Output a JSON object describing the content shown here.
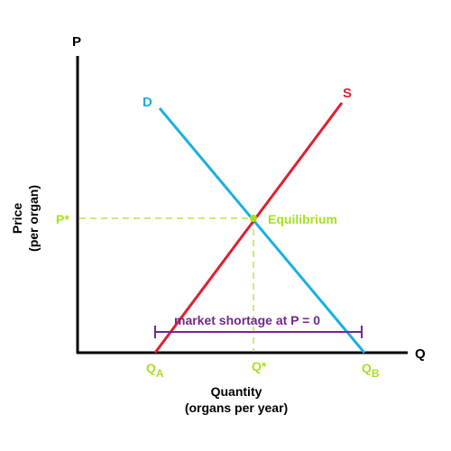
{
  "axes": {
    "y_axis_letter": "P",
    "x_axis_letter": "Q",
    "y_title_line1": "Price",
    "y_title_line2": "(per organ)",
    "x_title_line1": "Quantity",
    "x_title_line2": "(organs per year)"
  },
  "curves": {
    "demand_label": "D",
    "supply_label": "S",
    "demand_color": "#1ab0e0",
    "supply_color": "#e02030"
  },
  "equilibrium": {
    "label": "Equilibrium",
    "price_label": "P*",
    "quantity_label": "Q*",
    "color": "#a8e020"
  },
  "quantities": {
    "qa_main": "Q",
    "qa_sub": "A",
    "qb_main": "Q",
    "qb_sub": "B"
  },
  "shortage": {
    "label": "market shortage at P = 0",
    "color": "#70288c"
  }
}
